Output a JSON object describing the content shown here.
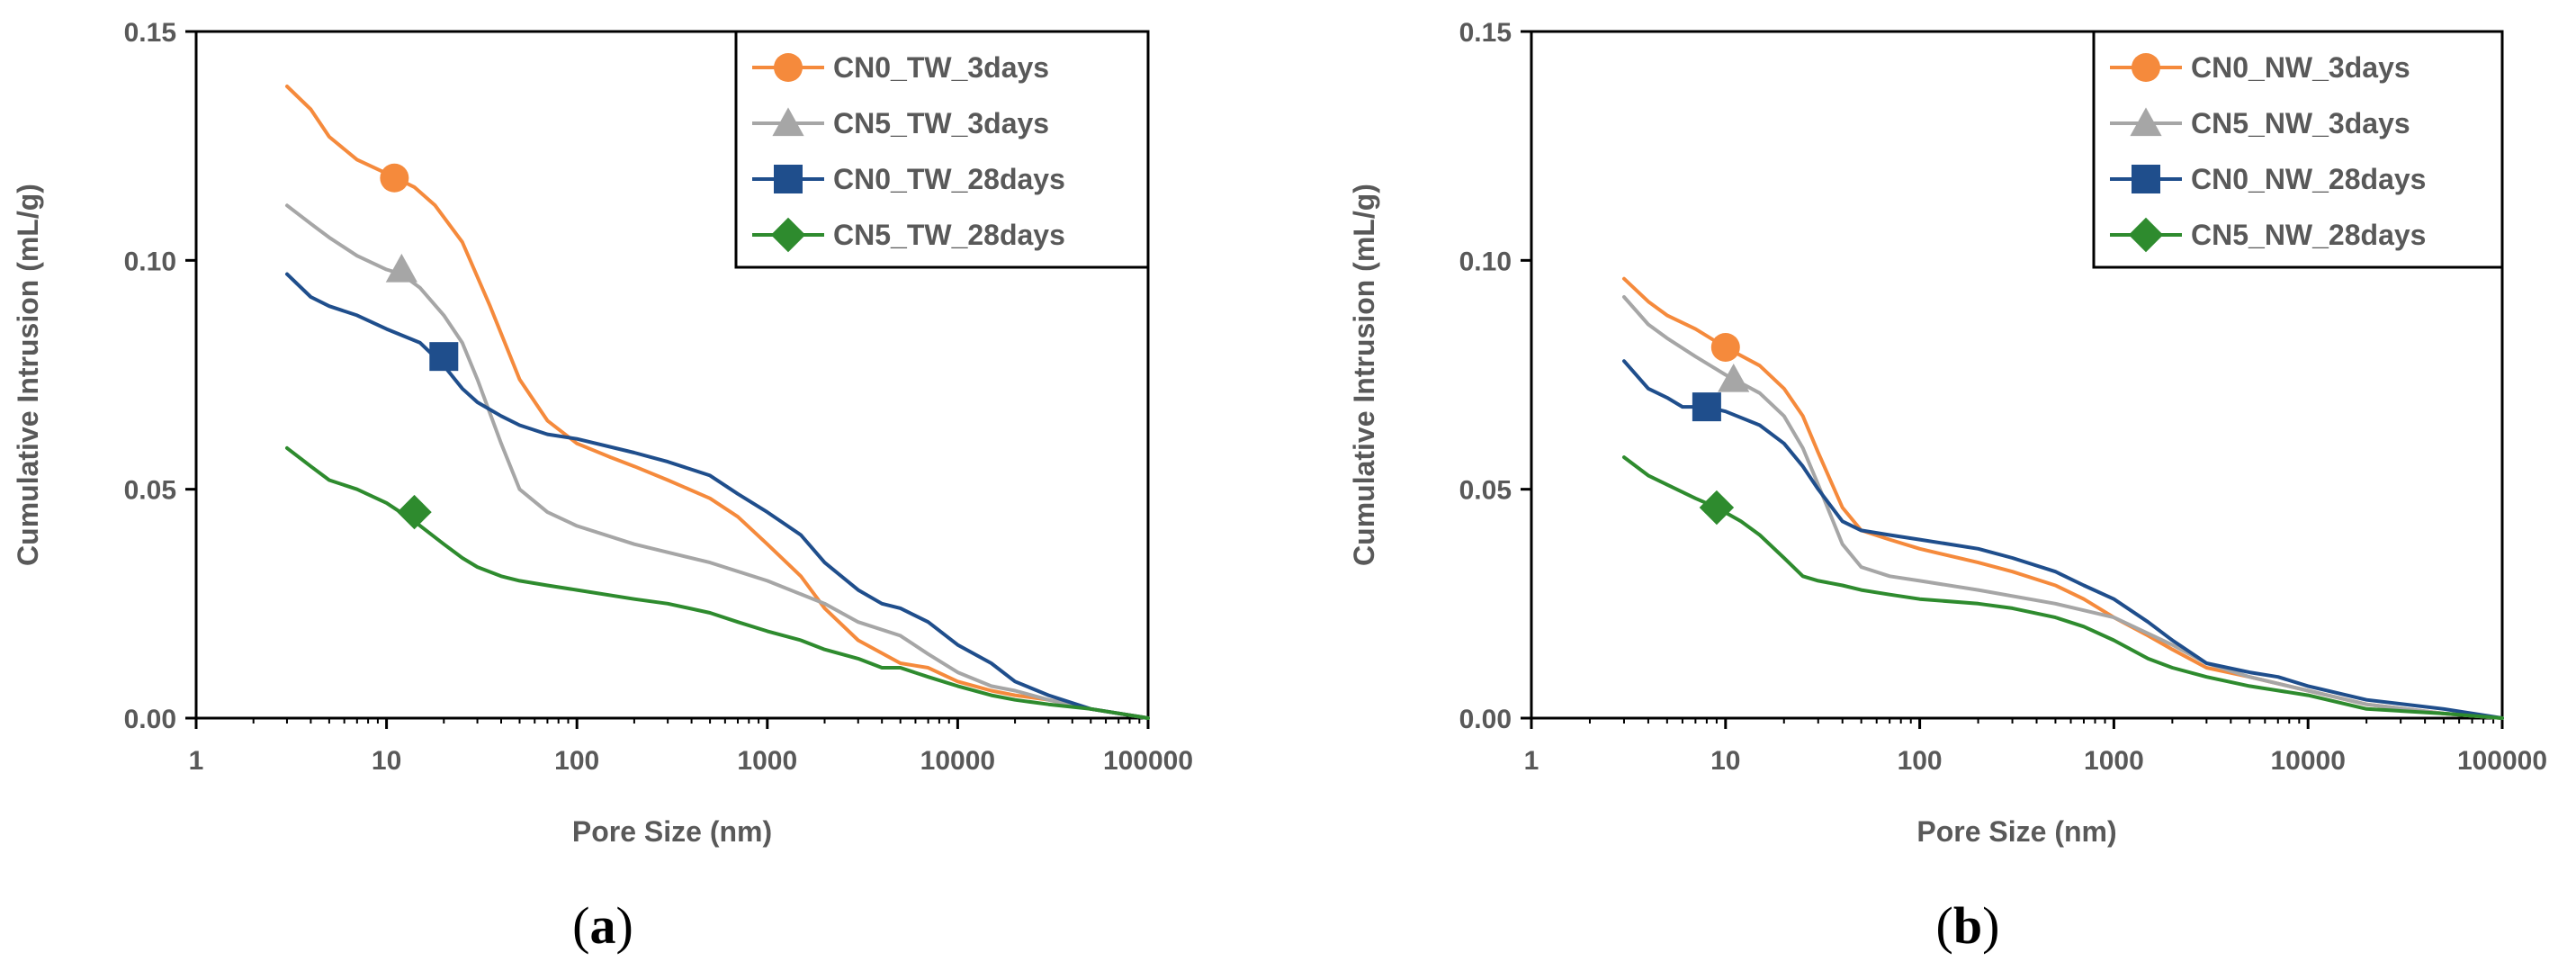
{
  "figure": {
    "panel_labels": [
      "a",
      "b"
    ]
  },
  "chart_data": [
    {
      "type": "line",
      "panel": "a",
      "title": "",
      "xlabel": "Pore Size (nm)",
      "ylabel": "Cumulative Intrusion (mL/g)",
      "xscale": "log",
      "xlim": [
        1,
        100000
      ],
      "ylim": [
        0,
        0.15
      ],
      "xticks": [
        "1",
        "10",
        "100",
        "1000",
        "10000",
        "100000"
      ],
      "yticks": [
        "0.00",
        "0.05",
        "0.10",
        "0.15"
      ],
      "legend_position": "top-right",
      "series": [
        {
          "name": "CN0_TW_3days",
          "color": "#F58A3C",
          "marker": "circle",
          "marker_at": [
            11,
            0.118
          ],
          "x": [
            3,
            4,
            5,
            7,
            10,
            14,
            18,
            25,
            35,
            50,
            70,
            100,
            150,
            200,
            300,
            500,
            700,
            1000,
            1500,
            2000,
            3000,
            5000,
            7000,
            10000,
            15000,
            20000,
            30000,
            50000,
            100000
          ],
          "y": [
            0.138,
            0.133,
            0.127,
            0.122,
            0.119,
            0.116,
            0.112,
            0.104,
            0.09,
            0.074,
            0.065,
            0.06,
            0.057,
            0.055,
            0.052,
            0.048,
            0.044,
            0.038,
            0.031,
            0.024,
            0.017,
            0.012,
            0.011,
            0.008,
            0.006,
            0.005,
            0.004,
            0.002,
            0
          ]
        },
        {
          "name": "CN5_TW_3days",
          "color": "#A6A6A6",
          "marker": "triangle",
          "marker_at": [
            12,
            0.098
          ],
          "x": [
            3,
            4,
            5,
            7,
            10,
            12,
            15,
            20,
            25,
            30,
            40,
            50,
            70,
            100,
            200,
            500,
            1000,
            2000,
            3000,
            5000,
            7000,
            10000,
            15000,
            20000,
            30000,
            50000,
            100000
          ],
          "y": [
            0.112,
            0.108,
            0.105,
            0.101,
            0.098,
            0.097,
            0.094,
            0.088,
            0.082,
            0.074,
            0.06,
            0.05,
            0.045,
            0.042,
            0.038,
            0.034,
            0.03,
            0.025,
            0.021,
            0.018,
            0.014,
            0.01,
            0.007,
            0.006,
            0.004,
            0.002,
            0
          ]
        },
        {
          "name": "CN0_TW_28days",
          "color": "#1F4E8C",
          "marker": "square",
          "marker_at": [
            20,
            0.079
          ],
          "x": [
            3,
            4,
            5,
            7,
            10,
            15,
            20,
            25,
            30,
            40,
            50,
            70,
            100,
            200,
            300,
            500,
            700,
            1000,
            1500,
            2000,
            3000,
            4000,
            5000,
            7000,
            10000,
            15000,
            20000,
            30000,
            50000,
            100000
          ],
          "y": [
            0.097,
            0.092,
            0.09,
            0.088,
            0.085,
            0.082,
            0.077,
            0.072,
            0.069,
            0.066,
            0.064,
            0.062,
            0.061,
            0.058,
            0.056,
            0.053,
            0.049,
            0.045,
            0.04,
            0.034,
            0.028,
            0.025,
            0.024,
            0.021,
            0.016,
            0.012,
            0.008,
            0.005,
            0.002,
            0
          ]
        },
        {
          "name": "CN5_TW_28days",
          "color": "#2E8B2E",
          "marker": "diamond",
          "marker_at": [
            14,
            0.045
          ],
          "x": [
            3,
            4,
            5,
            7,
            10,
            14,
            20,
            25,
            30,
            40,
            50,
            70,
            100,
            200,
            300,
            500,
            700,
            1000,
            1500,
            2000,
            3000,
            4000,
            5000,
            7000,
            10000,
            15000,
            20000,
            30000,
            50000,
            100000
          ],
          "y": [
            0.059,
            0.055,
            0.052,
            0.05,
            0.047,
            0.043,
            0.038,
            0.035,
            0.033,
            0.031,
            0.03,
            0.029,
            0.028,
            0.026,
            0.025,
            0.023,
            0.021,
            0.019,
            0.017,
            0.015,
            0.013,
            0.011,
            0.011,
            0.009,
            0.007,
            0.005,
            0.004,
            0.003,
            0.002,
            0
          ]
        }
      ]
    },
    {
      "type": "line",
      "panel": "b",
      "title": "",
      "xlabel": "Pore Size (nm)",
      "ylabel": "Cumulative Intrusion (mL/g)",
      "xscale": "log",
      "xlim": [
        1,
        100000
      ],
      "ylim": [
        0,
        0.15
      ],
      "xticks": [
        "1",
        "10",
        "100",
        "1000",
        "10000",
        "100000"
      ],
      "yticks": [
        "0.00",
        "0.05",
        "0.10",
        "0.15"
      ],
      "legend_position": "top-right",
      "series": [
        {
          "name": "CN0_NW_3days",
          "color": "#F58A3C",
          "marker": "circle",
          "marker_at": [
            10,
            0.081
          ],
          "x": [
            3,
            4,
            5,
            7,
            10,
            15,
            20,
            25,
            30,
            40,
            50,
            70,
            100,
            200,
            300,
            500,
            700,
            1000,
            1500,
            2000,
            3000,
            5000,
            10000,
            20000,
            50000,
            100000
          ],
          "y": [
            0.096,
            0.091,
            0.088,
            0.085,
            0.081,
            0.077,
            0.072,
            0.066,
            0.058,
            0.046,
            0.041,
            0.039,
            0.037,
            0.034,
            0.032,
            0.029,
            0.026,
            0.022,
            0.018,
            0.015,
            0.011,
            0.009,
            0.006,
            0.003,
            0.001,
            0
          ]
        },
        {
          "name": "CN5_NW_3days",
          "color": "#A6A6A6",
          "marker": "triangle",
          "marker_at": [
            11,
            0.074
          ],
          "x": [
            3,
            4,
            5,
            7,
            10,
            15,
            20,
            25,
            30,
            40,
            50,
            70,
            100,
            200,
            500,
            1000,
            2000,
            3000,
            5000,
            10000,
            20000,
            50000,
            100000
          ],
          "y": [
            0.092,
            0.086,
            0.083,
            0.079,
            0.075,
            0.071,
            0.066,
            0.059,
            0.051,
            0.038,
            0.033,
            0.031,
            0.03,
            0.028,
            0.025,
            0.022,
            0.016,
            0.012,
            0.009,
            0.006,
            0.003,
            0.001,
            0
          ]
        },
        {
          "name": "CN0_NW_28days",
          "color": "#1F4E8C",
          "marker": "square",
          "marker_at": [
            8,
            0.068
          ],
          "x": [
            3,
            4,
            5,
            6,
            8,
            10,
            15,
            20,
            25,
            30,
            40,
            50,
            70,
            100,
            200,
            300,
            500,
            700,
            1000,
            1500,
            2000,
            3000,
            5000,
            7000,
            10000,
            20000,
            50000,
            100000
          ],
          "y": [
            0.078,
            0.072,
            0.07,
            0.068,
            0.068,
            0.067,
            0.064,
            0.06,
            0.055,
            0.05,
            0.043,
            0.041,
            0.04,
            0.039,
            0.037,
            0.035,
            0.032,
            0.029,
            0.026,
            0.021,
            0.017,
            0.012,
            0.01,
            0.009,
            0.007,
            0.004,
            0.002,
            0
          ]
        },
        {
          "name": "CN5_NW_28days",
          "color": "#2E8B2E",
          "marker": "diamond",
          "marker_at": [
            9,
            0.046
          ],
          "x": [
            3,
            4,
            5,
            7,
            9,
            12,
            15,
            20,
            25,
            30,
            40,
            50,
            70,
            100,
            200,
            300,
            500,
            700,
            1000,
            1500,
            2000,
            3000,
            5000,
            10000,
            20000,
            50000,
            100000
          ],
          "y": [
            0.057,
            0.053,
            0.051,
            0.048,
            0.046,
            0.043,
            0.04,
            0.035,
            0.031,
            0.03,
            0.029,
            0.028,
            0.027,
            0.026,
            0.025,
            0.024,
            0.022,
            0.02,
            0.017,
            0.013,
            0.011,
            0.009,
            0.007,
            0.005,
            0.002,
            0.001,
            0
          ]
        }
      ]
    }
  ]
}
